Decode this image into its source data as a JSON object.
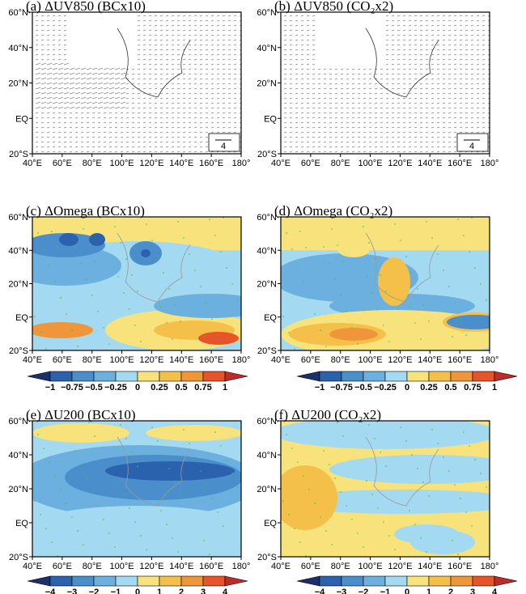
{
  "panels": [
    {
      "id": "a",
      "title": "(a) ΔUV850 (BCx10)",
      "type": "vector",
      "ref_vector": "4"
    },
    {
      "id": "b",
      "title": "(b) ΔUV850 (CO₂x2)",
      "type": "vector",
      "ref_vector": "4"
    },
    {
      "id": "c",
      "title": "(c) ΔOmega (BCx10)",
      "type": "omega"
    },
    {
      "id": "d",
      "title": "(d) ΔOmega (CO₂x2)",
      "type": "omega"
    },
    {
      "id": "e",
      "title": "(e) ΔU200 (BCx10)",
      "type": "u200"
    },
    {
      "id": "f",
      "title": "(f) ΔU200 (CO₂x2)",
      "type": "u200"
    }
  ],
  "lat_ticks": [
    "60°N",
    "40°N",
    "20°N",
    "EQ",
    "20°S"
  ],
  "lon_ticks": [
    "40°E",
    "60°E",
    "80°E",
    "100°E",
    "120°E",
    "140°E",
    "160°E",
    "180°"
  ],
  "colorbars": {
    "omega": [
      "−1",
      "−0.75",
      "−0.5",
      "−0.25",
      "0",
      "0.25",
      "0.5",
      "0.75",
      "1"
    ],
    "u200": [
      "−4",
      "−3",
      "−2",
      "−1",
      "0",
      "1",
      "2",
      "3",
      "4"
    ]
  },
  "colors": [
    "#1b2f6b",
    "#2b62ad",
    "#4a8fcb",
    "#6bb0de",
    "#a3d9f1",
    "#f7e27c",
    "#f5c04a",
    "#f0963a",
    "#e8542a",
    "#bf2a2a"
  ]
}
